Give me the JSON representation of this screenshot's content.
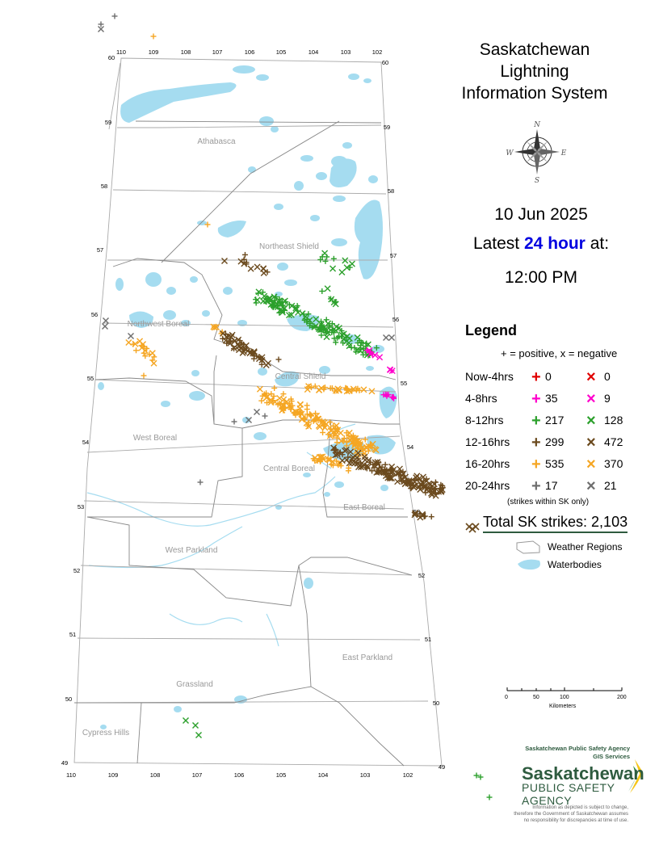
{
  "title": [
    "Saskatchewan",
    "Lightning",
    "Information System"
  ],
  "date": "10 Jun 2025",
  "latest": {
    "prefix": "Latest",
    "highlight": "24 hour",
    "suffix": "at:"
  },
  "time": "12:00 PM",
  "legend": {
    "title": "Legend",
    "note": "+ = positive, x = negative",
    "rows": [
      {
        "label": "Now-4hrs",
        "color": "#e00000",
        "positive": "0",
        "negative": "0"
      },
      {
        "label": "4-8hrs",
        "color": "#ff00cc",
        "positive": "35",
        "negative": "9"
      },
      {
        "label": "8-12hrs",
        "color": "#2ca02c",
        "positive": "217",
        "negative": "128"
      },
      {
        "label": "12-16hrs",
        "color": "#6b4a1e",
        "positive": "299",
        "negative": "472"
      },
      {
        "label": "16-20hrs",
        "color": "#f5a623",
        "positive": "535",
        "negative": "370"
      },
      {
        "label": "20-24hrs",
        "color": "#6e6e6e",
        "positive": "17",
        "negative": "21"
      }
    ],
    "footnote": "(strikes within SK only)",
    "total": "Total SK strikes: 2,103",
    "weather_regions": "Weather Regions",
    "waterbodies": "Waterbodies"
  },
  "scale": {
    "ticks": [
      "0",
      "50",
      "100",
      "200"
    ],
    "unit": "Kilometers"
  },
  "compass": {
    "n": "N",
    "e": "E",
    "s": "S",
    "w": "W"
  },
  "regions": [
    "Athabasca",
    "Northeast Shield",
    "Northwest Boreal",
    "Central Shield",
    "West Boreal",
    "Central Boreal",
    "East Boreal",
    "West Parkland",
    "East Parkland",
    "Grassland",
    "Cypress Hills"
  ],
  "longitudes_top": [
    "110",
    "109",
    "108",
    "107",
    "106",
    "105",
    "104",
    "103",
    "102"
  ],
  "longitudes_bottom": [
    "110",
    "109",
    "108",
    "107",
    "106",
    "105",
    "104",
    "103",
    "102"
  ],
  "latitudes_left": [
    "60",
    "59",
    "58",
    "57",
    "56",
    "55",
    "54",
    "53",
    "52",
    "51",
    "50",
    "49"
  ],
  "latitudes_right": [
    "60",
    "59",
    "58",
    "57",
    "56",
    "55",
    "54",
    "53",
    "52",
    "51",
    "50",
    "49"
  ],
  "agency": {
    "small": [
      "Saskatchewan Public Safety Agency",
      "GIS Services"
    ],
    "name": "Saskatchewan",
    "sub": "PUBLIC SAFETY AGENCY",
    "disclaimer": [
      "Information as depicted is subject to change,",
      "therefore the Government of Saskatchewan assumes",
      "no responsibility for discrepancies at time of use."
    ]
  },
  "colors": {
    "water": "#a5dcf0",
    "boundary": "#aaaaaa",
    "accent": "#0000e0",
    "agency": "#2e5b3f"
  }
}
